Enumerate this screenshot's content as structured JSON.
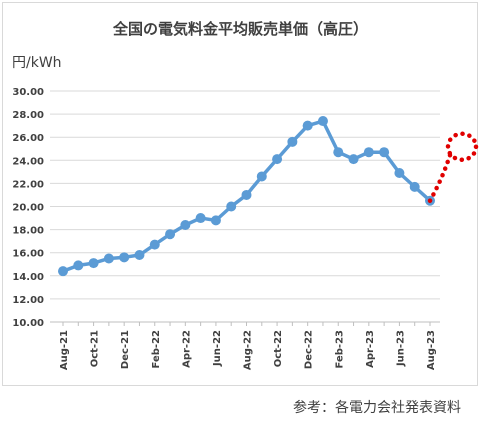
{
  "chart_data": {
    "type": "line",
    "title": "全国の電気料金平均販売単価（高圧）",
    "ylabel": "円/kWh",
    "xlabel": "",
    "ylim": [
      10,
      30
    ],
    "ytick_step": 2,
    "ytick_labels": [
      "10.00",
      "12.00",
      "14.00",
      "16.00",
      "18.00",
      "20.00",
      "22.00",
      "24.00",
      "26.00",
      "28.00",
      "30.00"
    ],
    "x": [
      "Aug-21",
      "Sep-21",
      "Oct-21",
      "Nov-21",
      "Dec-21",
      "Jan-22",
      "Feb-22",
      "Mar-22",
      "Apr-22",
      "May-22",
      "Jun-22",
      "Jul-22",
      "Aug-22",
      "Sep-22",
      "Oct-22",
      "Nov-22",
      "Dec-22",
      "Jan-23",
      "Feb-23",
      "Mar-23",
      "Apr-23",
      "May-23",
      "Jun-23",
      "Jul-23",
      "Aug-23"
    ],
    "xtick_labels": [
      "Aug-21",
      "Oct-21",
      "Dec-21",
      "Feb-22",
      "Apr-22",
      "Jun-22",
      "Aug-22",
      "Oct-22",
      "Dec-22",
      "Feb-23",
      "Apr-23",
      "Jun-23",
      "Aug-23"
    ],
    "series": [
      {
        "color": "#5b9bd5",
        "values": [
          14.4,
          14.9,
          15.1,
          15.5,
          15.6,
          15.8,
          16.7,
          17.6,
          18.4,
          19.0,
          18.8,
          20.0,
          21.0,
          22.6,
          24.1,
          25.6,
          27.0,
          27.4,
          24.7,
          24.1,
          24.7,
          24.7,
          22.9,
          21.7,
          20.5
        ]
      }
    ],
    "forecast": {
      "color": "#e00000",
      "style": "dotted",
      "from_value": 20.5,
      "to_value": 25.0
    },
    "grid": true,
    "legend": "none"
  },
  "note": "参考：各電力会社発表資料"
}
